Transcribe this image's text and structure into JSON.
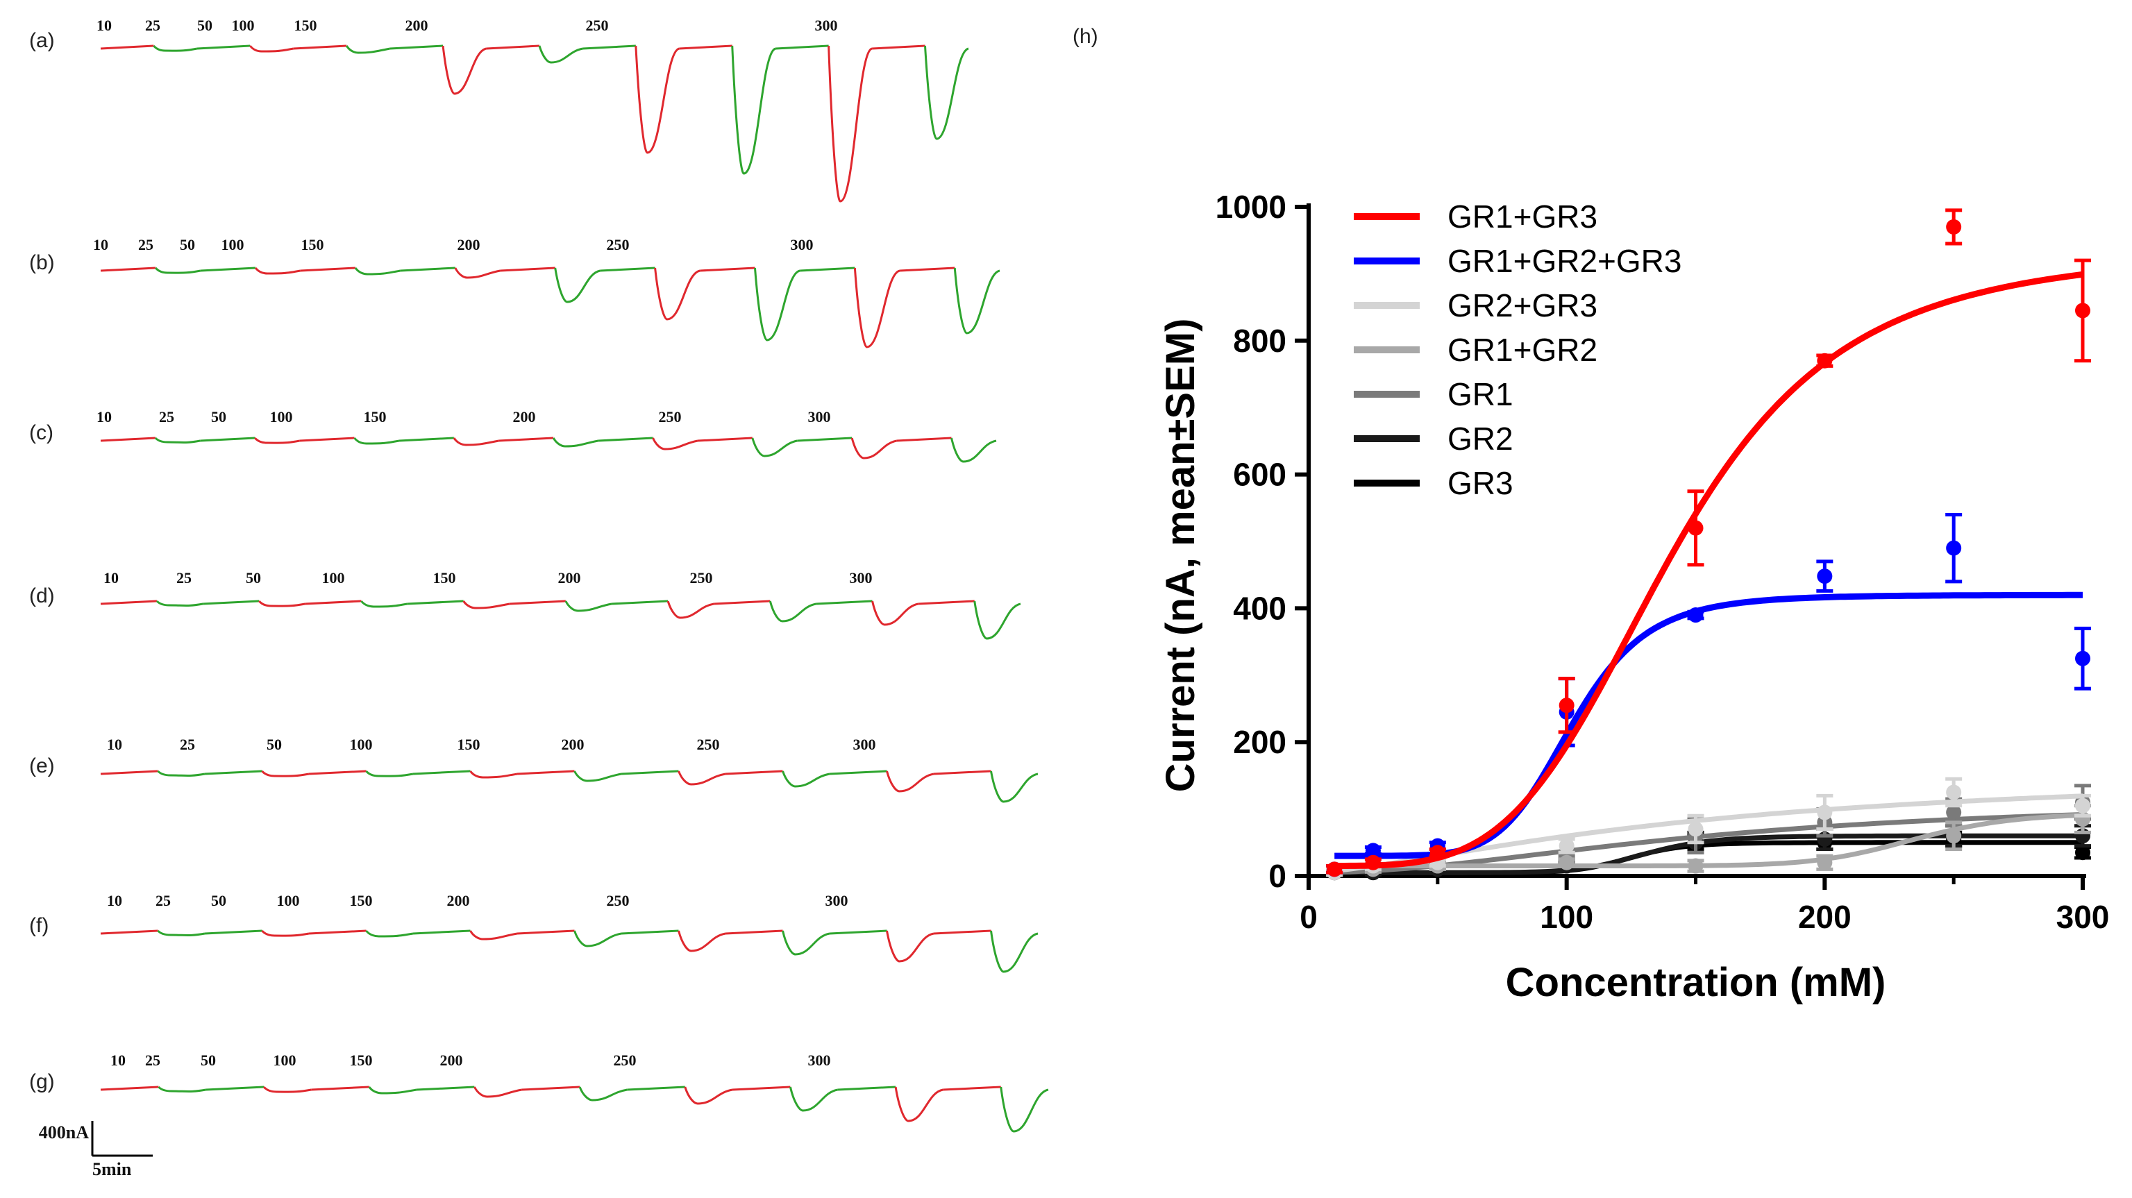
{
  "traces": {
    "colors": {
      "red": "#e0282e",
      "green": "#2ea52e"
    },
    "panels": [
      {
        "label": "(a)",
        "concentrations": [
          "10",
          "25",
          "50",
          "100",
          "150",
          "200",
          "250",
          "300"
        ]
      },
      {
        "label": "(b)",
        "concentrations": [
          "10",
          "25",
          "50",
          "100",
          "150",
          "200",
          "250",
          "300"
        ]
      },
      {
        "label": "(c)",
        "concentrations": [
          "10",
          "25",
          "50",
          "100",
          "150",
          "200",
          "250",
          "300"
        ]
      },
      {
        "label": "(d)",
        "concentrations": [
          "10",
          "25",
          "50",
          "100",
          "150",
          "200",
          "250",
          "300"
        ]
      },
      {
        "label": "(e)",
        "concentrations": [
          "10",
          "25",
          "50",
          "100",
          "150",
          "200",
          "250",
          "300"
        ]
      },
      {
        "label": "(f)",
        "concentrations": [
          "10",
          "25",
          "50",
          "100",
          "150",
          "200",
          "250",
          "300"
        ]
      },
      {
        "label": "(g)",
        "concentrations": [
          "10",
          "25",
          "50",
          "100",
          "150",
          "200",
          "250",
          "300"
        ]
      }
    ],
    "scale_bar": {
      "current": "400nA",
      "time": "5min"
    }
  },
  "chart_data": {
    "type": "scatter",
    "panel_label": "(h)",
    "xlabel": "Concentration (mM)",
    "ylabel": "Current (nA, mean±SEM)",
    "xlim": [
      0,
      300
    ],
    "ylim": [
      0,
      1000
    ],
    "xticks": [
      0,
      100,
      200,
      300
    ],
    "yticks": [
      0,
      200,
      400,
      600,
      800,
      1000
    ],
    "x": [
      10,
      25,
      50,
      100,
      150,
      200,
      250,
      300
    ],
    "legend_position": "top-left",
    "series": [
      {
        "name": "GR1+GR3",
        "color": "#ff0000",
        "values": [
          10,
          20,
          35,
          255,
          520,
          770,
          970,
          845
        ],
        "sem": [
          5,
          5,
          5,
          40,
          55,
          8,
          25,
          75
        ],
        "fit": {
          "bottom": 15,
          "top": 935,
          "ec50": 140,
          "hill": 4.2
        }
      },
      {
        "name": "GR1+GR2+GR3",
        "color": "#0000ff",
        "values": [
          10,
          38,
          45,
          245,
          390,
          448,
          490,
          325
        ],
        "sem": [
          5,
          5,
          5,
          50,
          5,
          22,
          50,
          45
        ],
        "fit": {
          "bottom": 30,
          "top": 420,
          "ec50": 102,
          "hill": 7
        }
      },
      {
        "name": "GR2+GR3",
        "color": "#d4d4d4",
        "values": [
          5,
          15,
          20,
          45,
          70,
          95,
          125,
          105
        ],
        "sem": [
          4,
          5,
          5,
          10,
          20,
          25,
          20,
          15
        ],
        "fit": {
          "bottom": 5,
          "top": 160,
          "ec50": 150,
          "hill": 1.5
        }
      },
      {
        "name": "GR1+GR2",
        "color": "#a8a8a8",
        "values": [
          5,
          10,
          15,
          20,
          15,
          20,
          60,
          85
        ],
        "sem": [
          3,
          4,
          5,
          5,
          8,
          10,
          20,
          20
        ],
        "fit": {
          "bottom": 15,
          "top": 95,
          "ec50": 235,
          "hill": 12
        }
      },
      {
        "name": "GR1",
        "color": "#7a7a7a",
        "values": [
          5,
          10,
          15,
          25,
          60,
          80,
          95,
          110
        ],
        "sem": [
          3,
          4,
          5,
          5,
          25,
          20,
          20,
          25
        ],
        "fit": {
          "bottom": 5,
          "top": 115,
          "ec50": 155,
          "hill": 2
        }
      },
      {
        "name": "GR2",
        "color": "#1a1a1a",
        "values": [
          5,
          5,
          10,
          15,
          50,
          55,
          60,
          60
        ],
        "sem": [
          3,
          3,
          4,
          5,
          15,
          15,
          15,
          15
        ],
        "fit": {
          "bottom": 5,
          "top": 60,
          "ec50": 130,
          "hill": 10
        }
      },
      {
        "name": "GR3",
        "color": "#000000",
        "values": [
          5,
          5,
          10,
          20,
          50,
          50,
          55,
          35
        ],
        "sem": [
          3,
          3,
          4,
          5,
          10,
          10,
          10,
          8
        ],
        "fit": {
          "bottom": 5,
          "top": 50,
          "ec50": 125,
          "hill": 12
        }
      }
    ]
  }
}
